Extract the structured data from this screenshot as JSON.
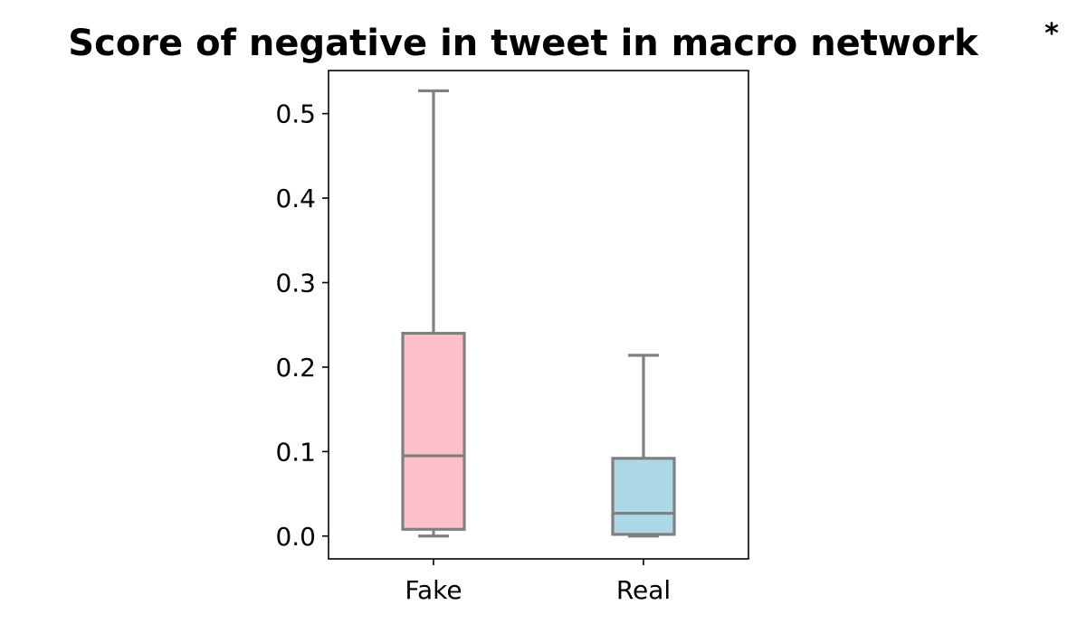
{
  "chart_data": {
    "type": "box",
    "title": "Score of negative in tweet in macro network",
    "title_annotation": "*",
    "xlabel": "",
    "ylabel": "",
    "categories": [
      "Fake",
      "Real"
    ],
    "ylim": [
      -0.027,
      0.551
    ],
    "yticks": [
      0.0,
      0.1,
      0.2,
      0.3,
      0.4,
      0.5
    ],
    "ytick_labels": [
      "0.0",
      "0.1",
      "0.2",
      "0.3",
      "0.4",
      "0.5"
    ],
    "grid": false,
    "legend": "none",
    "boxes": [
      {
        "category": "Fake",
        "whisker_low": 0.0,
        "q1": 0.008,
        "median": 0.095,
        "q3": 0.24,
        "whisker_high": 0.527,
        "fill": "#ffc0cb"
      },
      {
        "category": "Real",
        "whisker_low": 0.0,
        "q1": 0.002,
        "median": 0.027,
        "q3": 0.092,
        "whisker_high": 0.214,
        "fill": "#add8e6"
      }
    ],
    "line_color": "#808080",
    "axis_color": "#000000"
  }
}
